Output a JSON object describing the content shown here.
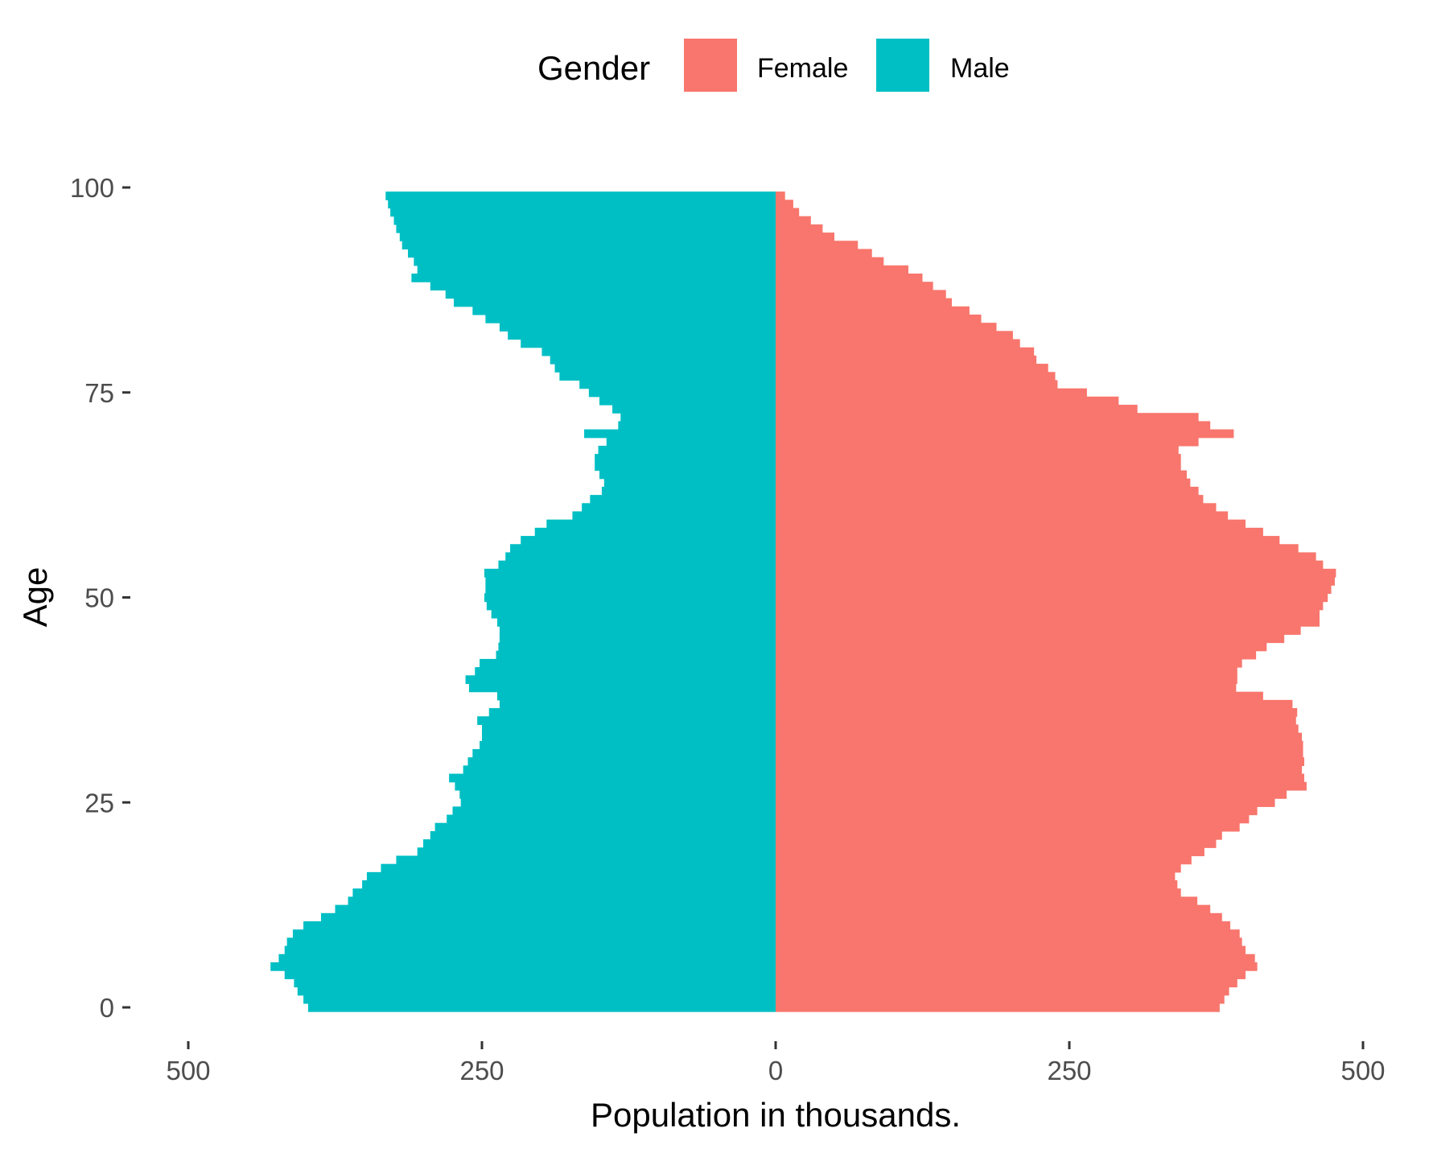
{
  "chart_data": {
    "type": "bar",
    "orientation": "horizontal",
    "subtype": "population-pyramid",
    "xlabel": "Population in thousands.",
    "ylabel": "Age",
    "xlim": [
      -500,
      500
    ],
    "ylim": [
      0,
      100
    ],
    "x_ticks": [
      -500,
      -250,
      0,
      250,
      500
    ],
    "x_tick_labels": [
      "500",
      "250",
      "0",
      "250",
      "500"
    ],
    "y_ticks": [
      0,
      25,
      50,
      75,
      100
    ],
    "y_tick_labels": [
      "0",
      "25",
      "50",
      "75",
      "100"
    ],
    "grid": false,
    "legend": {
      "title": "Gender",
      "position": "top",
      "entries": [
        {
          "label": "Female",
          "color": "#F8766D"
        },
        {
          "label": "Male",
          "color": "#00BFC4"
        }
      ]
    },
    "categories": [
      0,
      1,
      2,
      3,
      4,
      5,
      6,
      7,
      8,
      9,
      10,
      11,
      12,
      13,
      14,
      15,
      16,
      17,
      18,
      19,
      20,
      21,
      22,
      23,
      24,
      25,
      26,
      27,
      28,
      29,
      30,
      31,
      32,
      33,
      34,
      35,
      36,
      37,
      38,
      39,
      40,
      41,
      42,
      43,
      44,
      45,
      46,
      47,
      48,
      49,
      50,
      51,
      52,
      53,
      54,
      55,
      56,
      57,
      58,
      59,
      60,
      61,
      62,
      63,
      64,
      65,
      66,
      67,
      68,
      69,
      70,
      71,
      72,
      73,
      74,
      75,
      76,
      77,
      78,
      79,
      80,
      81,
      82,
      83,
      84,
      85,
      86,
      87,
      88,
      89,
      90,
      91,
      92,
      93,
      94,
      95,
      96,
      97,
      98,
      99
    ],
    "series": [
      {
        "name": "Male",
        "color": "#00BFC4",
        "values": [
          398,
          402,
          407,
          410,
          418,
          430,
          423,
          418,
          416,
          411,
          402,
          387,
          375,
          364,
          360,
          352,
          348,
          336,
          323,
          305,
          300,
          294,
          290,
          280,
          275,
          268,
          269,
          273,
          278,
          266,
          262,
          258,
          252,
          250,
          250,
          254,
          244,
          235,
          237,
          261,
          264,
          256,
          252,
          238,
          236,
          235,
          235,
          237,
          242,
          246,
          248,
          247,
          247,
          248,
          236,
          230,
          226,
          217,
          205,
          195,
          173,
          165,
          158,
          148,
          146,
          150,
          154,
          154,
          151,
          144,
          163,
          134,
          132,
          139,
          150,
          159,
          167,
          184,
          188,
          192,
          199,
          217,
          228,
          235,
          247,
          258,
          274,
          281,
          294,
          310,
          305,
          308,
          313,
          318,
          320,
          323,
          325,
          328,
          330,
          332
        ]
      },
      {
        "name": "Female",
        "color": "#F8766D",
        "values": [
          378,
          382,
          386,
          393,
          400,
          410,
          408,
          400,
          397,
          395,
          387,
          380,
          370,
          359,
          345,
          342,
          340,
          345,
          354,
          365,
          375,
          380,
          395,
          403,
          410,
          425,
          435,
          452,
          450,
          448,
          450,
          449,
          449,
          448,
          445,
          443,
          444,
          440,
          415,
          392,
          393,
          393,
          397,
          409,
          418,
          433,
          447,
          463,
          463,
          466,
          470,
          473,
          476,
          477,
          466,
          460,
          445,
          429,
          415,
          400,
          385,
          375,
          364,
          360,
          353,
          350,
          345,
          345,
          343,
          360,
          390,
          370,
          360,
          308,
          292,
          265,
          240,
          238,
          232,
          222,
          220,
          208,
          202,
          188,
          175,
          165,
          150,
          145,
          134,
          125,
          113,
          92,
          82,
          70,
          50,
          40,
          30,
          20,
          15,
          8
        ]
      }
    ]
  }
}
